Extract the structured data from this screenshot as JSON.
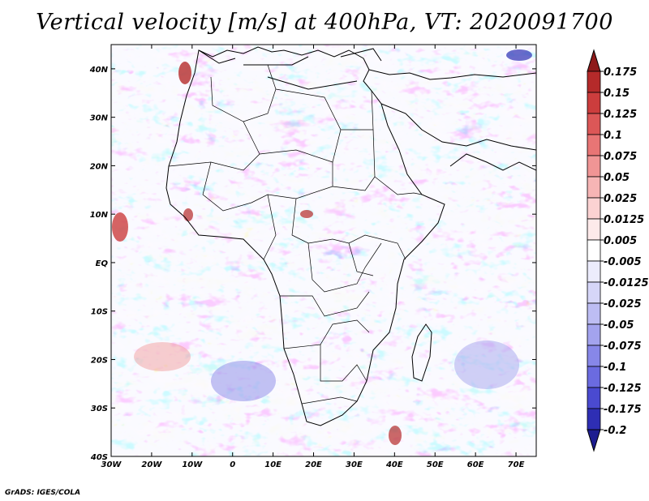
{
  "title": "Vertical velocity [m/s] at 400hPa, VT: 2020091700",
  "footer": "GrADS: IGES/COLA",
  "axes": {
    "lon_labels": [
      "30W",
      "20W",
      "10W",
      "0",
      "10E",
      "20E",
      "30E",
      "40E",
      "50E",
      "60E",
      "70E"
    ],
    "lat_labels": [
      "40N",
      "30N",
      "20N",
      "10N",
      "EQ",
      "10S",
      "20S",
      "30S",
      "40S"
    ],
    "lon_range": [
      -30,
      75
    ],
    "lat_range": [
      -40,
      45
    ]
  },
  "colorbar": {
    "labels": [
      "0.175",
      "0.15",
      "0.125",
      "0.1",
      "0.075",
      "0.05",
      "0.025",
      "0.0125",
      "0.005",
      "-0.005",
      "-0.0125",
      "-0.025",
      "-0.05",
      "-0.075",
      "-0.1",
      "-0.125",
      "-0.175",
      "-0.2"
    ],
    "colors": [
      "#8e1a1a",
      "#b52a2a",
      "#cc3d3d",
      "#dc5757",
      "#e87575",
      "#f09595",
      "#f6b5b5",
      "#fbd2d2",
      "#fdeaea",
      "#ffffff",
      "#ececfc",
      "#d6d6f8",
      "#bdbdf3",
      "#a3a3ee",
      "#8787e8",
      "#6b6be0",
      "#4a4ad0",
      "#2e2eb4",
      "#1d1d90"
    ]
  },
  "palette": {
    "field_red": "#f08f8f",
    "field_blue": "#8d8de8",
    "field_white": "#f4f4ff",
    "coast": "#000000"
  }
}
